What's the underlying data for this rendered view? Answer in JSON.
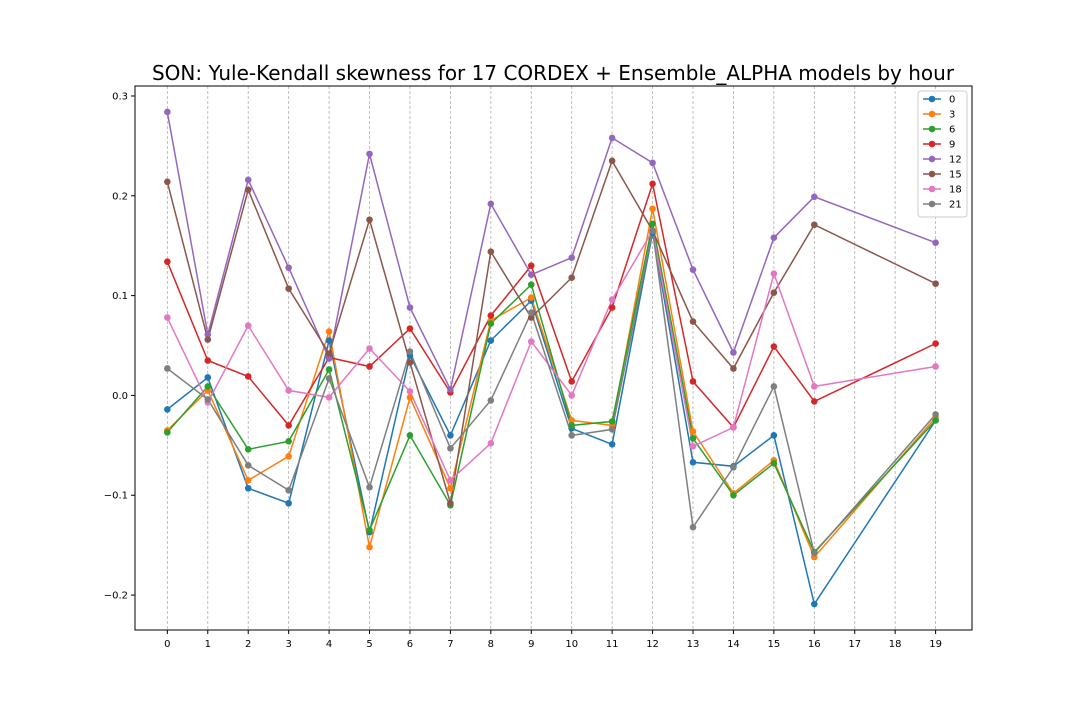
{
  "chart_data": {
    "type": "line",
    "title": "SON: Yule-Kendall skewness for 17 CORDEX + Ensemble_ALPHA models by hour",
    "xlabel": "",
    "ylabel": "",
    "xlim": [
      -0.8,
      19.9
    ],
    "ylim": [
      -0.235,
      0.31
    ],
    "x_ticks": [
      0,
      1,
      2,
      3,
      4,
      5,
      6,
      7,
      8,
      9,
      10,
      11,
      12,
      13,
      14,
      15,
      16,
      17,
      18,
      19
    ],
    "y_ticks": [
      -0.2,
      -0.1,
      0.0,
      0.1,
      0.2,
      0.3
    ],
    "y_tick_labels": [
      "−0.2",
      "−0.1",
      "0.0",
      "0.1",
      "0.2",
      "0.3"
    ],
    "x_grid": "vertical dashed",
    "legend_position": "top-right",
    "x": [
      0,
      1,
      2,
      3,
      4,
      5,
      6,
      7,
      8,
      9,
      10,
      11,
      12,
      13,
      14,
      15,
      16,
      19
    ],
    "series": [
      {
        "name": "0",
        "color": "#1f77b4",
        "values": [
          -0.014,
          0.018,
          -0.093,
          -0.108,
          0.055,
          -0.137,
          0.04,
          -0.04,
          0.055,
          0.095,
          -0.033,
          -0.049,
          0.163,
          -0.067,
          -0.071,
          -0.04,
          -0.209,
          -0.025
        ]
      },
      {
        "name": "3",
        "color": "#ff7f0e",
        "values": [
          -0.035,
          0.005,
          -0.085,
          -0.061,
          0.064,
          -0.152,
          -0.002,
          -0.093,
          0.075,
          0.098,
          -0.025,
          -0.03,
          0.187,
          -0.036,
          -0.098,
          -0.065,
          -0.162,
          -0.022
        ]
      },
      {
        "name": "6",
        "color": "#2ca02c",
        "values": [
          -0.037,
          0.009,
          -0.054,
          -0.046,
          0.026,
          -0.135,
          -0.04,
          -0.11,
          0.072,
          0.111,
          -0.03,
          -0.026,
          0.172,
          -0.043,
          -0.1,
          -0.068,
          -0.157,
          -0.025
        ]
      },
      {
        "name": "9",
        "color": "#d62728",
        "values": [
          0.134,
          0.035,
          0.019,
          -0.03,
          0.038,
          0.029,
          0.067,
          0.003,
          0.08,
          0.13,
          0.014,
          0.088,
          0.212,
          0.014,
          -0.032,
          0.049,
          -0.006,
          0.052
        ]
      },
      {
        "name": "12",
        "color": "#9467bd",
        "values": [
          0.284,
          0.061,
          0.216,
          0.128,
          0.037,
          0.242,
          0.088,
          0.006,
          0.192,
          0.121,
          0.138,
          0.258,
          0.233,
          0.126,
          0.043,
          0.158,
          0.199,
          0.153
        ]
      },
      {
        "name": "15",
        "color": "#8c564b",
        "values": [
          0.214,
          0.056,
          0.206,
          0.107,
          0.042,
          0.176,
          0.033,
          -0.108,
          0.144,
          0.078,
          0.118,
          0.235,
          0.165,
          0.074,
          0.027,
          0.103,
          0.171,
          0.112
        ]
      },
      {
        "name": "18",
        "color": "#e377c2",
        "values": [
          0.078,
          -0.007,
          0.07,
          0.005,
          -0.002,
          0.047,
          0.004,
          -0.085,
          -0.048,
          0.054,
          0.0,
          0.096,
          0.165,
          -0.051,
          -0.032,
          0.122,
          0.009,
          0.029
        ]
      },
      {
        "name": "21",
        "color": "#7f7f7f",
        "values": [
          0.027,
          -0.004,
          -0.07,
          -0.095,
          0.017,
          -0.092,
          0.044,
          -0.053,
          -0.005,
          0.083,
          -0.04,
          -0.034,
          0.165,
          -0.132,
          -0.072,
          0.009,
          -0.158,
          -0.019
        ]
      }
    ]
  }
}
